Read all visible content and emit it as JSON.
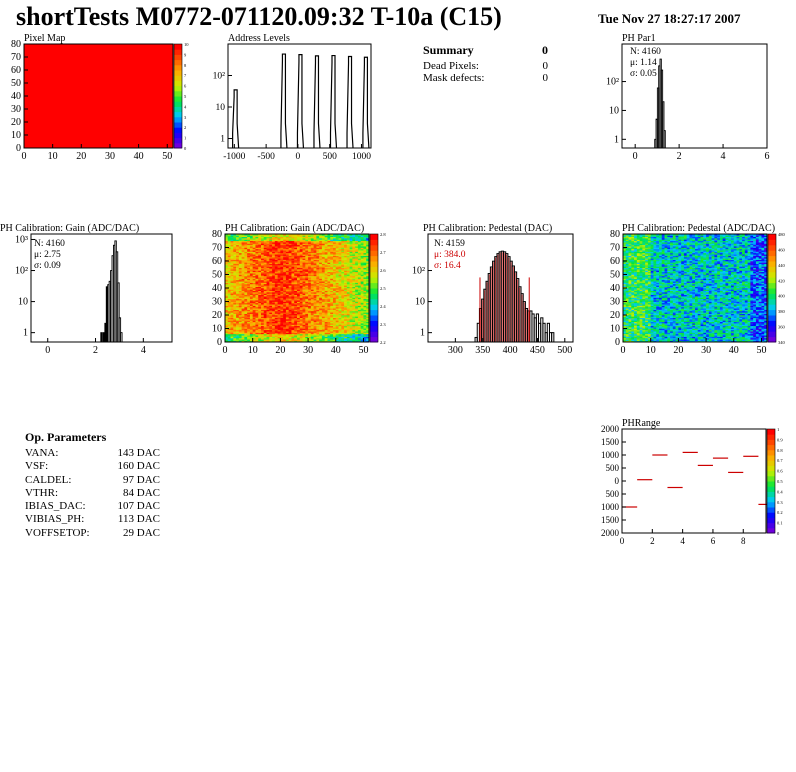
{
  "header": {
    "title": "shortTests M0772-071120.09:32 T-10a (C15)",
    "timestamp": "Tue Nov 27 18:27:17 2007"
  },
  "summary": {
    "title": "Summary",
    "title_value": "0",
    "rows": [
      {
        "label": "Dead Pixels:",
        "value": "0"
      },
      {
        "label": "Mask defects:",
        "value": "0"
      }
    ]
  },
  "op_parameters": {
    "title": "Op. Parameters",
    "rows": [
      {
        "label": "VANA:",
        "value": "143 DAC"
      },
      {
        "label": "VSF:",
        "value": "160 DAC"
      },
      {
        "label": "CALDEL:",
        "value": "97 DAC"
      },
      {
        "label": "VTHR:",
        "value": "84 DAC"
      },
      {
        "label": "IBIAS_DAC:",
        "value": "107 DAC"
      },
      {
        "label": "VIBIAS_PH:",
        "value": "113 DAC"
      },
      {
        "label": "VOFFSETOP:",
        "value": "29 DAC"
      }
    ]
  },
  "colors": {
    "red_fill": "#ff0000",
    "hist_line": "#000000",
    "accent_red": "#cc0000"
  },
  "chart_data": [
    {
      "id": "pixel-map",
      "type": "heatmap",
      "title": "Pixel Map",
      "xlim": [
        0,
        52
      ],
      "ylim": [
        0,
        80
      ],
      "xticks": [
        0,
        10,
        20,
        30,
        40,
        50
      ],
      "yticks": [
        0,
        10,
        20,
        30,
        40,
        50,
        60,
        70,
        80
      ],
      "fill": "uniform-max",
      "zlim": [
        0,
        10
      ],
      "zticks": [
        0,
        1,
        2,
        3,
        4,
        5,
        6,
        7,
        8,
        9,
        10
      ]
    },
    {
      "id": "address-levels",
      "type": "bar",
      "title": "Address Levels",
      "log_y": true,
      "xlim": [
        -1100,
        1150
      ],
      "ylim": [
        0.5,
        1000
      ],
      "xticks": [
        -1000,
        -500,
        0,
        500,
        1000
      ],
      "xtick_labels": [
        "-1000",
        "-500",
        "0",
        "500",
        "1000"
      ],
      "yticks": [
        1,
        10,
        100
      ],
      "ytick_labels": [
        "1",
        "10",
        "10²"
      ],
      "peaks": [
        {
          "x": -980,
          "y": 35
        },
        {
          "x": -220,
          "y": 480
        },
        {
          "x": 40,
          "y": 460
        },
        {
          "x": 300,
          "y": 420
        },
        {
          "x": 560,
          "y": 430
        },
        {
          "x": 820,
          "y": 400
        },
        {
          "x": 1070,
          "y": 380
        }
      ]
    },
    {
      "id": "ph-par1",
      "type": "bar",
      "title": "PH Par1",
      "log_y": true,
      "xlim": [
        -0.6,
        6
      ],
      "ylim": [
        0.5,
        2000
      ],
      "xticks": [
        0,
        2,
        4,
        6
      ],
      "yticks": [
        1,
        10,
        100
      ],
      "ytick_labels": [
        "1",
        "10",
        "10²"
      ],
      "stats": [
        "N: 4160",
        "μ: 1.14",
        "σ: 0.05"
      ],
      "bins": [
        {
          "x": 0.92,
          "y": 1
        },
        {
          "x": 0.98,
          "y": 5
        },
        {
          "x": 1.04,
          "y": 60
        },
        {
          "x": 1.1,
          "y": 350
        },
        {
          "x": 1.16,
          "y": 600
        },
        {
          "x": 1.22,
          "y": 250
        },
        {
          "x": 1.28,
          "y": 20
        },
        {
          "x": 1.34,
          "y": 2
        }
      ]
    },
    {
      "id": "ph-gain",
      "type": "bar",
      "title": "PH Calibration: Gain (ADC/DAC)",
      "log_y": true,
      "xlim": [
        -0.7,
        5.2
      ],
      "ylim": [
        0.5,
        1500
      ],
      "xticks": [
        0,
        2,
        4
      ],
      "yticks": [
        1,
        10,
        100,
        1000
      ],
      "ytick_labels": [
        "1",
        "10",
        "10²",
        "10³"
      ],
      "stats": [
        "N: 4160",
        "μ: 2.75",
        "σ: 0.09"
      ],
      "bins": [
        {
          "x": 2.25,
          "y": 1
        },
        {
          "x": 2.35,
          "y": 1
        },
        {
          "x": 2.42,
          "y": 2
        },
        {
          "x": 2.48,
          "y": 30
        },
        {
          "x": 2.54,
          "y": 35
        },
        {
          "x": 2.6,
          "y": 45
        },
        {
          "x": 2.66,
          "y": 100
        },
        {
          "x": 2.72,
          "y": 300
        },
        {
          "x": 2.78,
          "y": 650
        },
        {
          "x": 2.84,
          "y": 900
        },
        {
          "x": 2.9,
          "y": 400
        },
        {
          "x": 2.96,
          "y": 40
        },
        {
          "x": 3.02,
          "y": 3
        },
        {
          "x": 3.08,
          "y": 1
        }
      ]
    },
    {
      "id": "gain-map",
      "type": "heatmap",
      "title": "PH Calibration: Gain (ADC/DAC)",
      "xlim": [
        0,
        52
      ],
      "ylim": [
        0,
        80
      ],
      "xticks": [
        0,
        10,
        20,
        30,
        40,
        50
      ],
      "yticks": [
        0,
        10,
        20,
        30,
        40,
        50,
        60,
        70,
        80
      ],
      "zticks": [
        2.2,
        2.3,
        2.4,
        2.5,
        2.6,
        2.7,
        2.8
      ]
    },
    {
      "id": "pedestal-hist",
      "type": "bar",
      "title": "PH Calibration: Pedestal (DAC)",
      "log_y": true,
      "xlim": [
        250,
        515
      ],
      "ylim": [
        0.5,
        1500
      ],
      "xticks": [
        300,
        350,
        400,
        450,
        500
      ],
      "yticks": [
        1,
        10,
        100
      ],
      "ytick_labels": [
        "1",
        "10",
        "10²"
      ],
      "stats": [
        "N: 4159",
        "μ: 384.0",
        "σ: 16.4"
      ],
      "fit_range": [
        345,
        435
      ],
      "bins": [
        {
          "x": 338,
          "y": 0.7
        },
        {
          "x": 342,
          "y": 2
        },
        {
          "x": 346,
          "y": 6
        },
        {
          "x": 350,
          "y": 12
        },
        {
          "x": 354,
          "y": 25
        },
        {
          "x": 358,
          "y": 45
        },
        {
          "x": 362,
          "y": 80
        },
        {
          "x": 366,
          "y": 130
        },
        {
          "x": 370,
          "y": 200
        },
        {
          "x": 374,
          "y": 280
        },
        {
          "x": 378,
          "y": 350
        },
        {
          "x": 382,
          "y": 400
        },
        {
          "x": 386,
          "y": 420
        },
        {
          "x": 390,
          "y": 400
        },
        {
          "x": 394,
          "y": 350
        },
        {
          "x": 398,
          "y": 280
        },
        {
          "x": 402,
          "y": 200
        },
        {
          "x": 406,
          "y": 140
        },
        {
          "x": 410,
          "y": 90
        },
        {
          "x": 414,
          "y": 55
        },
        {
          "x": 418,
          "y": 30
        },
        {
          "x": 422,
          "y": 18
        },
        {
          "x": 426,
          "y": 10
        },
        {
          "x": 430,
          "y": 6
        },
        {
          "x": 434,
          "y": 5
        },
        {
          "x": 438,
          "y": 5
        },
        {
          "x": 442,
          "y": 4
        },
        {
          "x": 446,
          "y": 3
        },
        {
          "x": 450,
          "y": 4
        },
        {
          "x": 454,
          "y": 2
        },
        {
          "x": 458,
          "y": 3
        },
        {
          "x": 462,
          "y": 2
        },
        {
          "x": 466,
          "y": 1
        },
        {
          "x": 470,
          "y": 2
        },
        {
          "x": 474,
          "y": 1
        },
        {
          "x": 478,
          "y": 1
        }
      ]
    },
    {
      "id": "pedestal-map",
      "type": "heatmap",
      "title": "PH Calibration: Pedestal (ADC/DAC)",
      "xlim": [
        0,
        52
      ],
      "ylim": [
        0,
        80
      ],
      "xticks": [
        0,
        10,
        20,
        30,
        40,
        50
      ],
      "yticks": [
        0,
        10,
        20,
        30,
        40,
        50,
        60,
        70,
        80
      ],
      "zticks": [
        340,
        360,
        380,
        400,
        420,
        440,
        460,
        480
      ]
    },
    {
      "id": "ph-range",
      "type": "scatter",
      "title": "PHRange",
      "xlim": [
        0,
        9.5
      ],
      "ylim": [
        -2000,
        2000
      ],
      "xticks": [
        0,
        2,
        4,
        6,
        8
      ],
      "yticks": [
        -2000,
        -1500,
        -1000,
        -500,
        0,
        500,
        1000,
        1500,
        2000
      ],
      "ytick_labels": [
        "2000",
        "1500",
        "1000",
        "500",
        "0",
        "500",
        "1000",
        "1500",
        "2000"
      ],
      "zticks": [
        0,
        0.1,
        0.2,
        0.3,
        0.4,
        0.5,
        0.6,
        0.7,
        0.8,
        0.9,
        1
      ],
      "points": [
        {
          "x": 0,
          "y": -1000
        },
        {
          "x": 1,
          "y": 50
        },
        {
          "x": 2,
          "y": 1000
        },
        {
          "x": 3,
          "y": -250
        },
        {
          "x": 4,
          "y": 1100
        },
        {
          "x": 5,
          "y": 600
        },
        {
          "x": 6,
          "y": 880
        },
        {
          "x": 7,
          "y": 330
        },
        {
          "x": 8,
          "y": 950
        },
        {
          "x": 9,
          "y": -900
        }
      ]
    }
  ]
}
